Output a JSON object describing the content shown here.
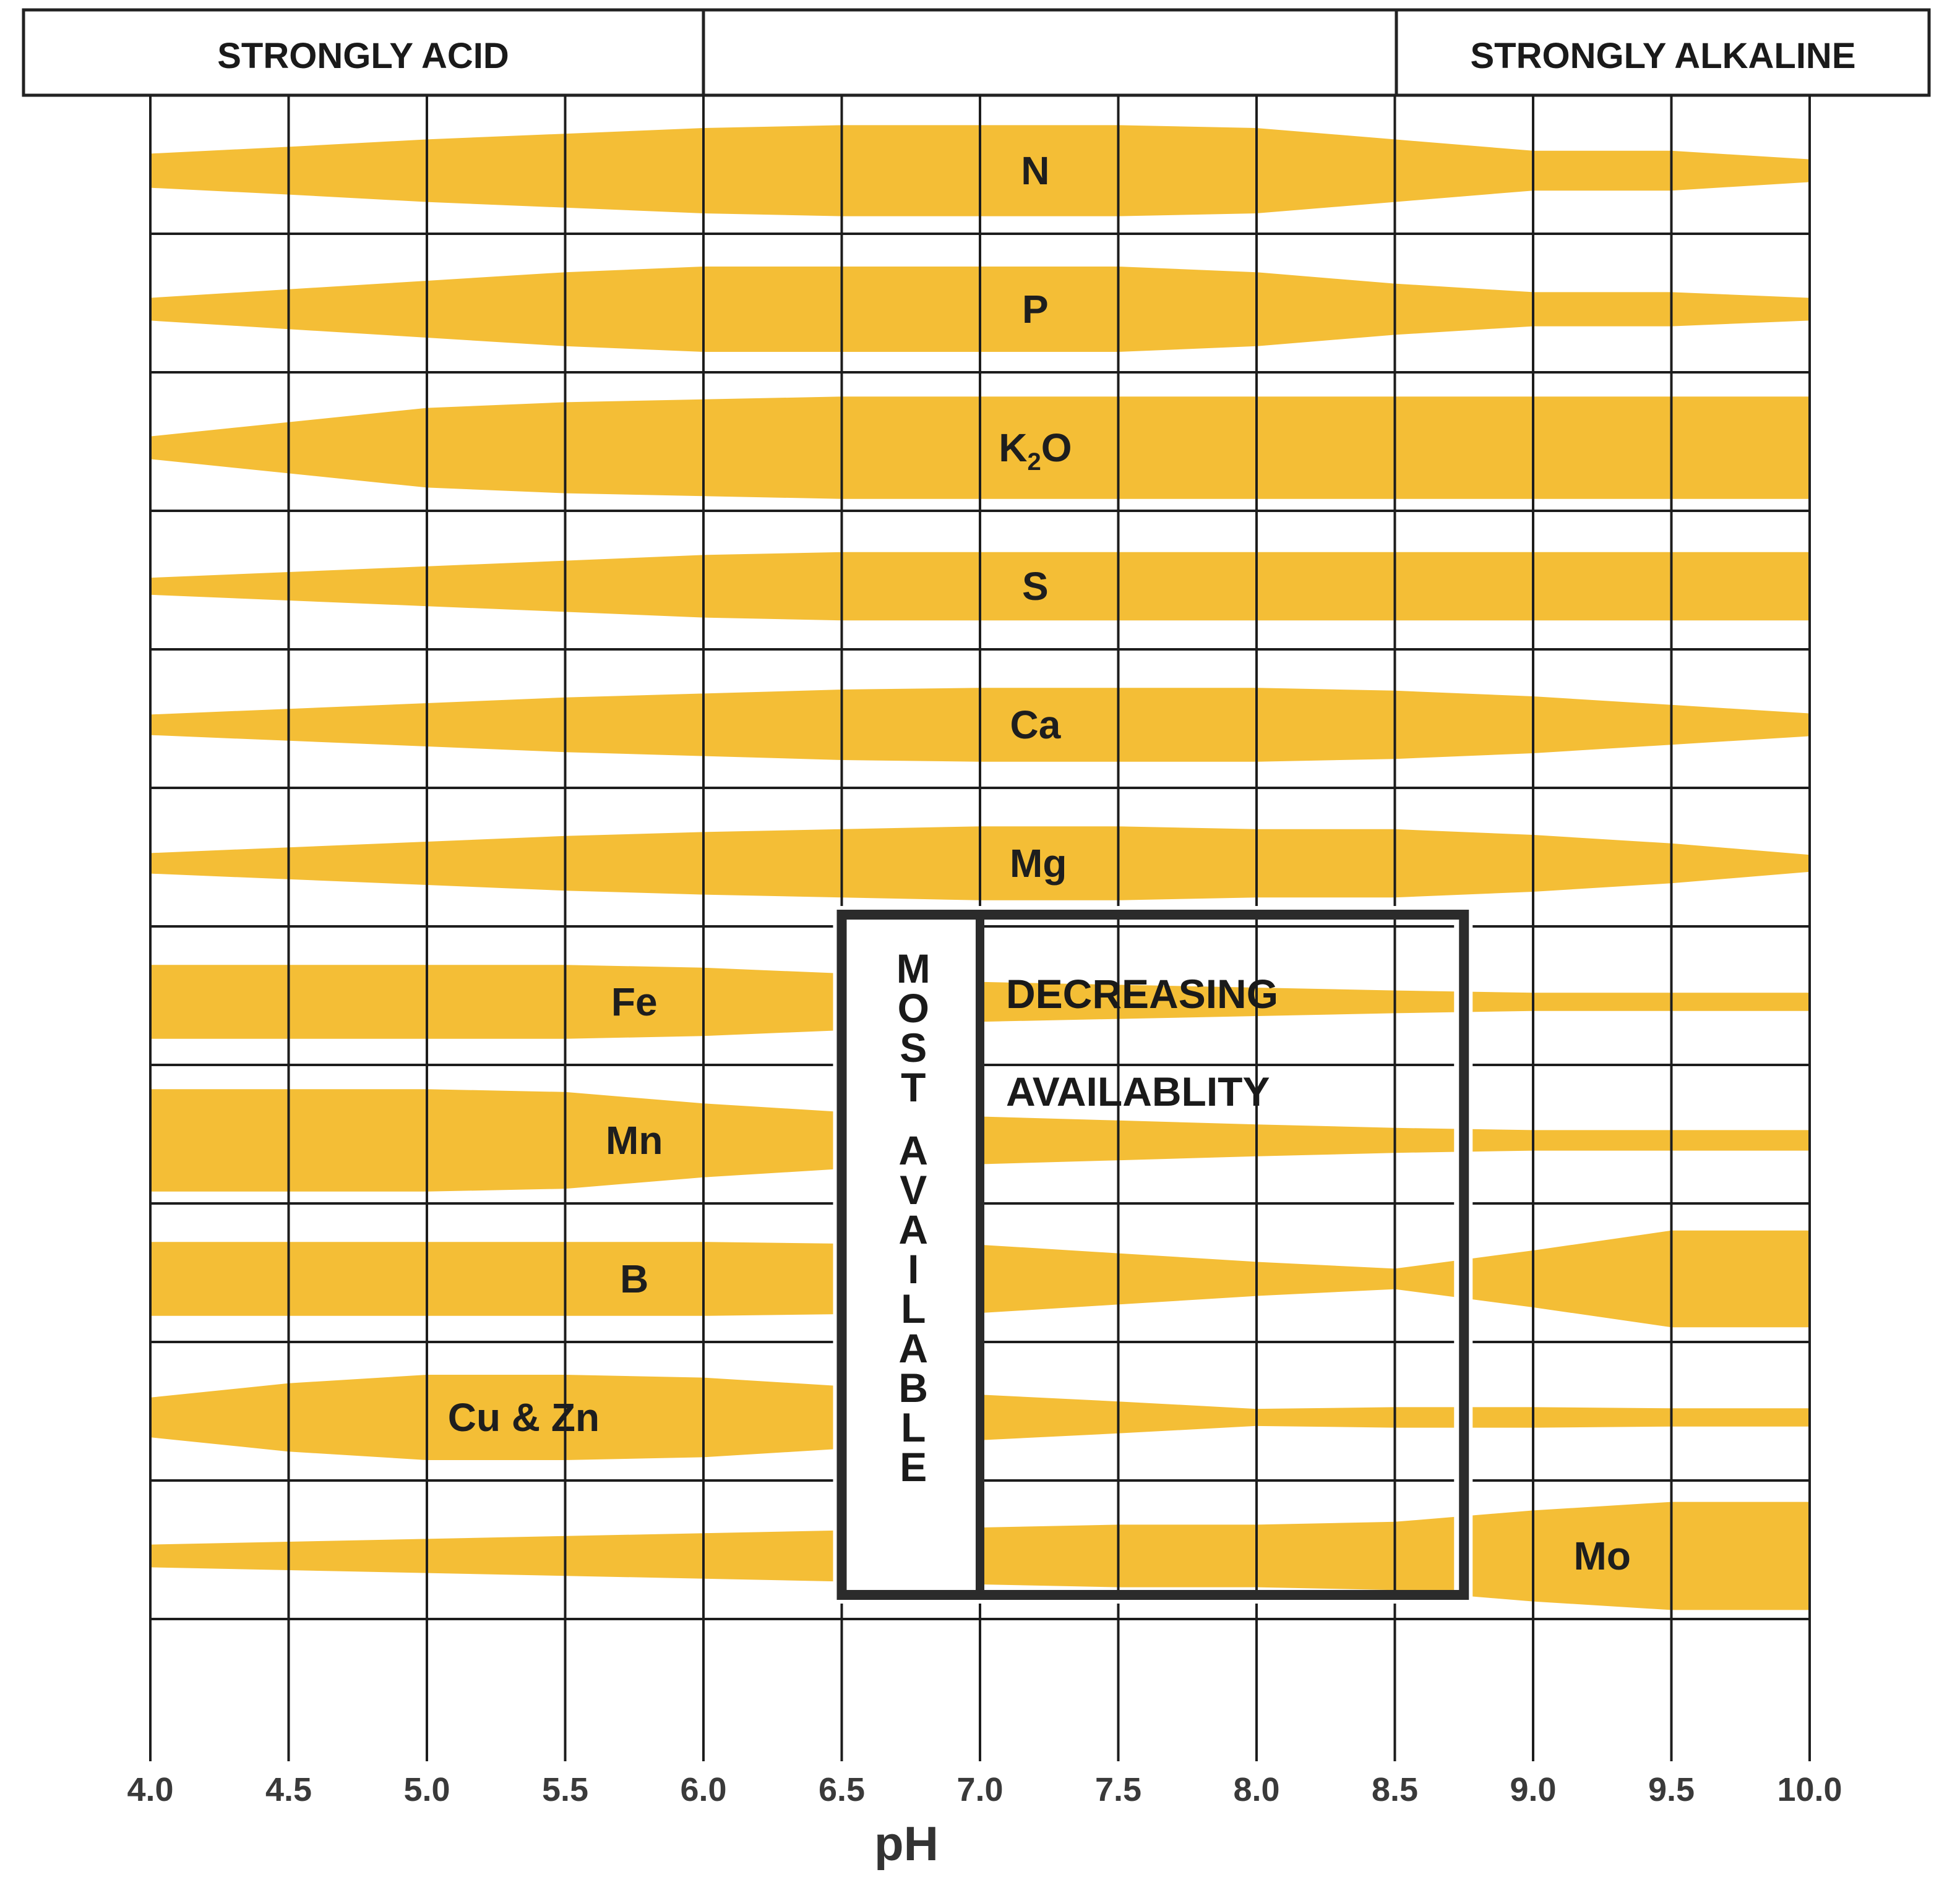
{
  "header": {
    "left": "STRONGLY ACID",
    "right": "STRONGLY ALKALINE"
  },
  "chart_data": {
    "type": "area",
    "xlabel": "pH",
    "x_range": [
      4.0,
      10.0
    ],
    "x_ticks": [
      "4.0",
      "4.5",
      "5.0",
      "5.5",
      "6.0",
      "6.5",
      "7.0",
      "7.5",
      "8.0",
      "8.5",
      "9.0",
      "9.5",
      "10.0"
    ],
    "x": [
      4.0,
      4.5,
      5.0,
      5.5,
      6.0,
      6.5,
      7.0,
      7.5,
      8.0,
      8.5,
      9.0,
      9.5,
      10.0
    ],
    "value_meaning": "relative availability (band width), 0-1",
    "series": [
      {
        "name": "N",
        "label": "N",
        "values": [
          0.3,
          0.42,
          0.55,
          0.65,
          0.75,
          0.8,
          0.8,
          0.8,
          0.75,
          0.55,
          0.35,
          0.35,
          0.2
        ]
      },
      {
        "name": "P",
        "label": "P",
        "values": [
          0.2,
          0.35,
          0.5,
          0.65,
          0.75,
          0.75,
          0.75,
          0.75,
          0.65,
          0.45,
          0.3,
          0.3,
          0.2
        ]
      },
      {
        "name": "K2O",
        "label_main": "K",
        "label_sub": "2",
        "label_tail": "O",
        "values": [
          0.2,
          0.45,
          0.7,
          0.8,
          0.85,
          0.9,
          0.9,
          0.9,
          0.9,
          0.9,
          0.9,
          0.9,
          0.9
        ]
      },
      {
        "name": "S",
        "label": "S",
        "values": [
          0.15,
          0.25,
          0.35,
          0.45,
          0.55,
          0.6,
          0.6,
          0.6,
          0.6,
          0.6,
          0.6,
          0.6,
          0.6
        ]
      },
      {
        "name": "Ca",
        "label": "Ca",
        "values": [
          0.18,
          0.28,
          0.38,
          0.48,
          0.55,
          0.62,
          0.65,
          0.65,
          0.65,
          0.6,
          0.5,
          0.35,
          0.2
        ]
      },
      {
        "name": "Mg",
        "label": "Mg",
        "values": [
          0.18,
          0.28,
          0.38,
          0.48,
          0.55,
          0.6,
          0.65,
          0.65,
          0.6,
          0.6,
          0.5,
          0.35,
          0.15
        ]
      },
      {
        "name": "Fe",
        "label": "Fe",
        "values": [
          0.65,
          0.65,
          0.65,
          0.65,
          0.6,
          0.5,
          0.35,
          0.3,
          0.25,
          0.2,
          0.16,
          0.16,
          0.16
        ]
      },
      {
        "name": "Mn",
        "label": "Mn",
        "values": [
          0.9,
          0.9,
          0.9,
          0.85,
          0.65,
          0.5,
          0.42,
          0.35,
          0.28,
          0.22,
          0.18,
          0.18,
          0.18
        ]
      },
      {
        "name": "B",
        "label": "B",
        "values": [
          0.65,
          0.65,
          0.65,
          0.65,
          0.65,
          0.62,
          0.6,
          0.45,
          0.3,
          0.18,
          0.5,
          0.85,
          0.85
        ]
      },
      {
        "name": "Cu & Zn",
        "label": "Cu & Zn",
        "values": [
          0.35,
          0.6,
          0.75,
          0.75,
          0.7,
          0.55,
          0.4,
          0.28,
          0.15,
          0.18,
          0.18,
          0.16,
          0.16
        ]
      },
      {
        "name": "Mo",
        "label": "Mo",
        "values": [
          0.2,
          0.25,
          0.3,
          0.35,
          0.4,
          0.45,
          0.5,
          0.55,
          0.55,
          0.6,
          0.8,
          0.95,
          0.95
        ]
      }
    ],
    "label_at": [
      7.2,
      7.2,
      7.2,
      7.2,
      7.2,
      7.2,
      5.75,
      5.75,
      5.75,
      5.35,
      9.25
    ],
    "grid": true,
    "band_color": "#f4bb2e",
    "box": {
      "range": [
        6.5,
        8.75
      ],
      "vertical_label": "MOST AVAILABLE",
      "line1": "DECREASING",
      "line2": "AVAILABLITY"
    }
  }
}
